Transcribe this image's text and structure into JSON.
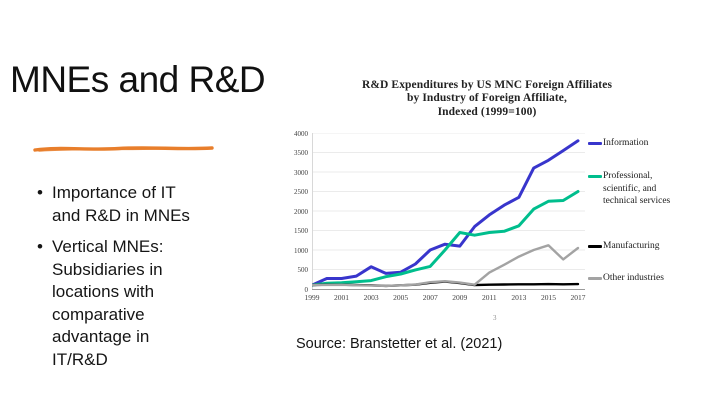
{
  "slide": {
    "title": "MNEs and R&D",
    "bullets": [
      "Importance of IT\nand R&D in MNEs",
      "Vertical MNEs:\nSubsidiaries in\nlocations with\ncomparative\nadvantage in\nIT/R&D"
    ],
    "source": "Source: Branstetter et al. (2021)",
    "divider_color": "#E87E2B",
    "text_color": "#151515"
  },
  "chart": {
    "footnote_mark": "3"
  },
  "chart_data": {
    "type": "line",
    "title": "R&D Expenditures by US MNC Foreign Affiliates\nby Industry of Foreign Affiliate,\nIndexed (1999=100)",
    "xlabel": "",
    "ylabel": "",
    "x": [
      1999,
      2000,
      2001,
      2002,
      2003,
      2004,
      2005,
      2006,
      2007,
      2008,
      2009,
      2010,
      2011,
      2012,
      2013,
      2014,
      2015,
      2016,
      2017
    ],
    "x_ticks": [
      1999,
      2001,
      2003,
      2005,
      2007,
      2009,
      2011,
      2013,
      2015,
      2017
    ],
    "ylim": [
      0,
      4000
    ],
    "ytick_step": 500,
    "grid": "horizontal",
    "legend_position": "right",
    "grid_color": "#e4e4e4",
    "axis_color": "#9b9b9b",
    "series": [
      {
        "name": "Information",
        "color": "#3835CC",
        "values": [
          100,
          270,
          270,
          330,
          570,
          400,
          430,
          640,
          1000,
          1150,
          1100,
          1600,
          1900,
          2150,
          2350,
          3100,
          3300,
          3550,
          3800
        ]
      },
      {
        "name": "Professional,\nscientific, and\ntechnical services",
        "color": "#00BE8D",
        "values": [
          100,
          145,
          160,
          185,
          215,
          315,
          385,
          490,
          580,
          1000,
          1450,
          1380,
          1450,
          1480,
          1620,
          2050,
          2250,
          2270,
          2500
        ]
      },
      {
        "name": "Manufacturing",
        "color": "#000000",
        "values": [
          100,
          110,
          110,
          100,
          95,
          80,
          95,
          110,
          160,
          190,
          155,
          100,
          110,
          115,
          120,
          120,
          125,
          120,
          125
        ]
      },
      {
        "name": "Other industries",
        "color": "#A3A3A3",
        "values": [
          100,
          105,
          108,
          95,
          88,
          80,
          95,
          115,
          175,
          200,
          165,
          110,
          420,
          620,
          830,
          1000,
          1120,
          760,
          1050
        ]
      }
    ]
  }
}
